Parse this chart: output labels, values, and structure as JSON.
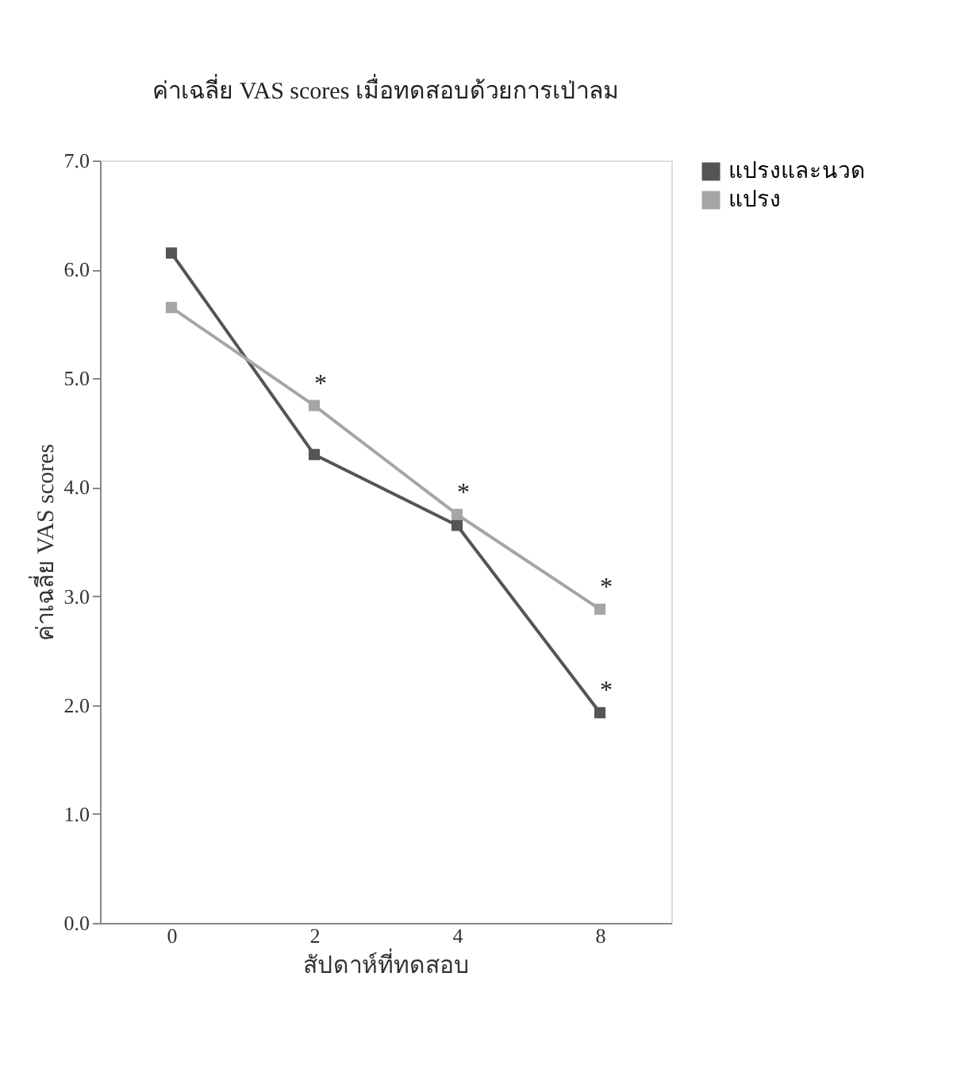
{
  "chart_data": {
    "type": "line",
    "title": "ค่าเฉลี่ย VAS scores เมื่อทดสอบด้วยการเป่าลม",
    "xlabel": "สัปดาห์ที่ทดสอบ",
    "ylabel": "ค่าเฉลี่ย VAS scores",
    "categories": [
      "0",
      "2",
      "4",
      "8"
    ],
    "series": [
      {
        "name": "แปรงและนวด",
        "color": "#555555",
        "values": [
          6.15,
          4.3,
          3.65,
          1.93
        ]
      },
      {
        "name": "แปรง",
        "color": "#a6a6a6",
        "values": [
          5.65,
          4.75,
          3.75,
          2.88
        ]
      }
    ],
    "ylim": [
      0,
      7
    ],
    "yticks": [
      {
        "value": 0,
        "label": "0.0"
      },
      {
        "value": 1,
        "label": "1.0"
      },
      {
        "value": 2,
        "label": "2.0"
      },
      {
        "value": 3,
        "label": "3.0"
      },
      {
        "value": 4,
        "label": "4.0"
      },
      {
        "value": 5,
        "label": "5.0"
      },
      {
        "value": 6,
        "label": "6.0"
      },
      {
        "value": 7,
        "label": "7.0"
      }
    ],
    "annotations": [
      {
        "text": "*",
        "x": "2",
        "y": 4.75
      },
      {
        "text": "*",
        "x": "4",
        "y": 3.75
      },
      {
        "text": "*",
        "x": "8",
        "y": 2.88
      },
      {
        "text": "*",
        "x": "8",
        "y": 1.93
      }
    ],
    "marker": "square",
    "line_style": "solid",
    "grid": false,
    "legend": "right"
  }
}
